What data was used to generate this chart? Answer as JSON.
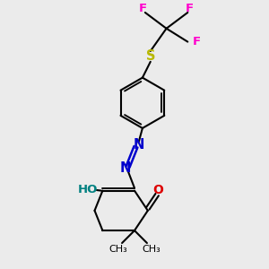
{
  "bg_color": "#ebebeb",
  "atom_colors": {
    "F": "#ff00cc",
    "S": "#b8b800",
    "N": "#0000cc",
    "O_red": "#dd0000",
    "O_teal": "#008080",
    "C": "#000000"
  },
  "bond_color": "#000000",
  "bond_width": 1.5,
  "figsize": [
    3.0,
    3.0
  ],
  "dpi": 100,
  "xlim": [
    0,
    10
  ],
  "ylim": [
    0,
    10
  ]
}
